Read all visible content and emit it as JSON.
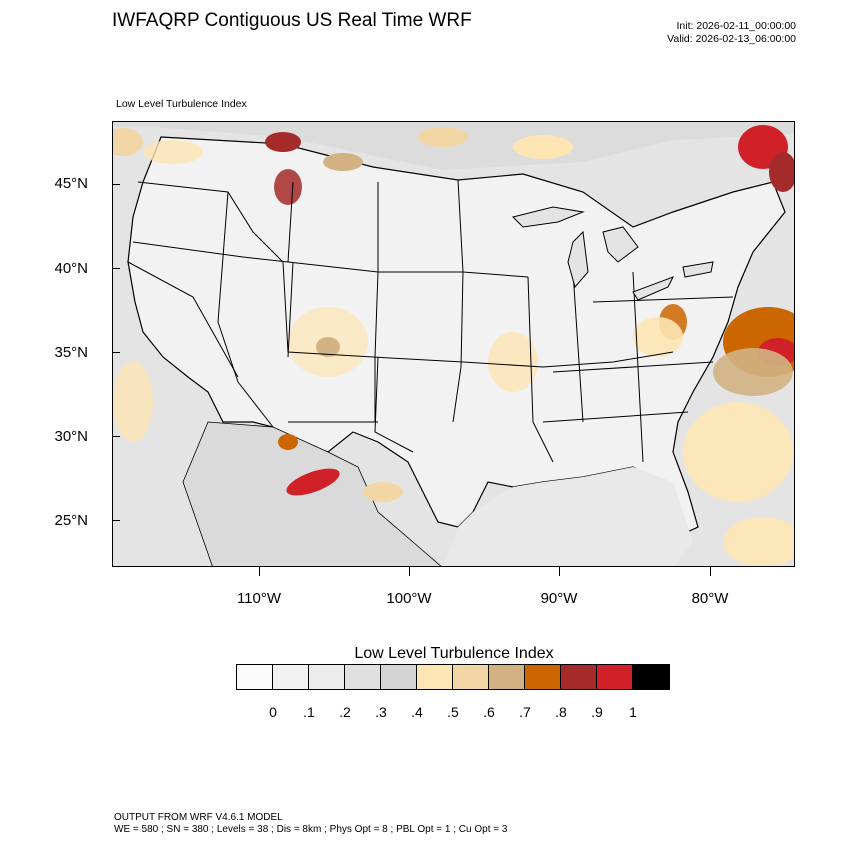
{
  "header": {
    "title": "IWFAQRP Contiguous US Real Time WRF",
    "init": "Init: 2026-02-11_00:00:00",
    "valid": "Valid: 2026-02-13_06:00:00",
    "subtitle": "Low Level Turbulence Index"
  },
  "map": {
    "lat_labels": [
      "45°N",
      "40°N",
      "35°N",
      "30°N",
      "25°N"
    ],
    "lon_labels": [
      "110°W",
      "100°W",
      "90°W",
      "80°W"
    ],
    "colors": {
      "background": "#e6e6e6",
      "land_light": "#f4f4f4",
      "ocean": "#d9d9d9",
      "borders": "#000000"
    }
  },
  "legend": {
    "title": "Low Level Turbulence Index",
    "colors": [
      "#fafafa",
      "#f2f2f2",
      "#ececec",
      "#e0e0e0",
      "#d4d4d4",
      "#fde5b4",
      "#f2d6a6",
      "#d2b283",
      "#cc6600",
      "#a52a2a",
      "#d12128",
      "#000000"
    ],
    "labels": [
      "0",
      ".1",
      ".2",
      ".3",
      ".4",
      ".5",
      ".6",
      ".7",
      ".8",
      ".9",
      "1"
    ]
  },
  "footer": {
    "line1": "OUTPUT FROM WRF V4.6.1 MODEL",
    "line2": "WE = 580 ; SN = 380 ; Levels = 38 ; Dis = 8km ; Phys Opt = 8 ; PBL Opt = 1 ; Cu Opt = 3"
  }
}
